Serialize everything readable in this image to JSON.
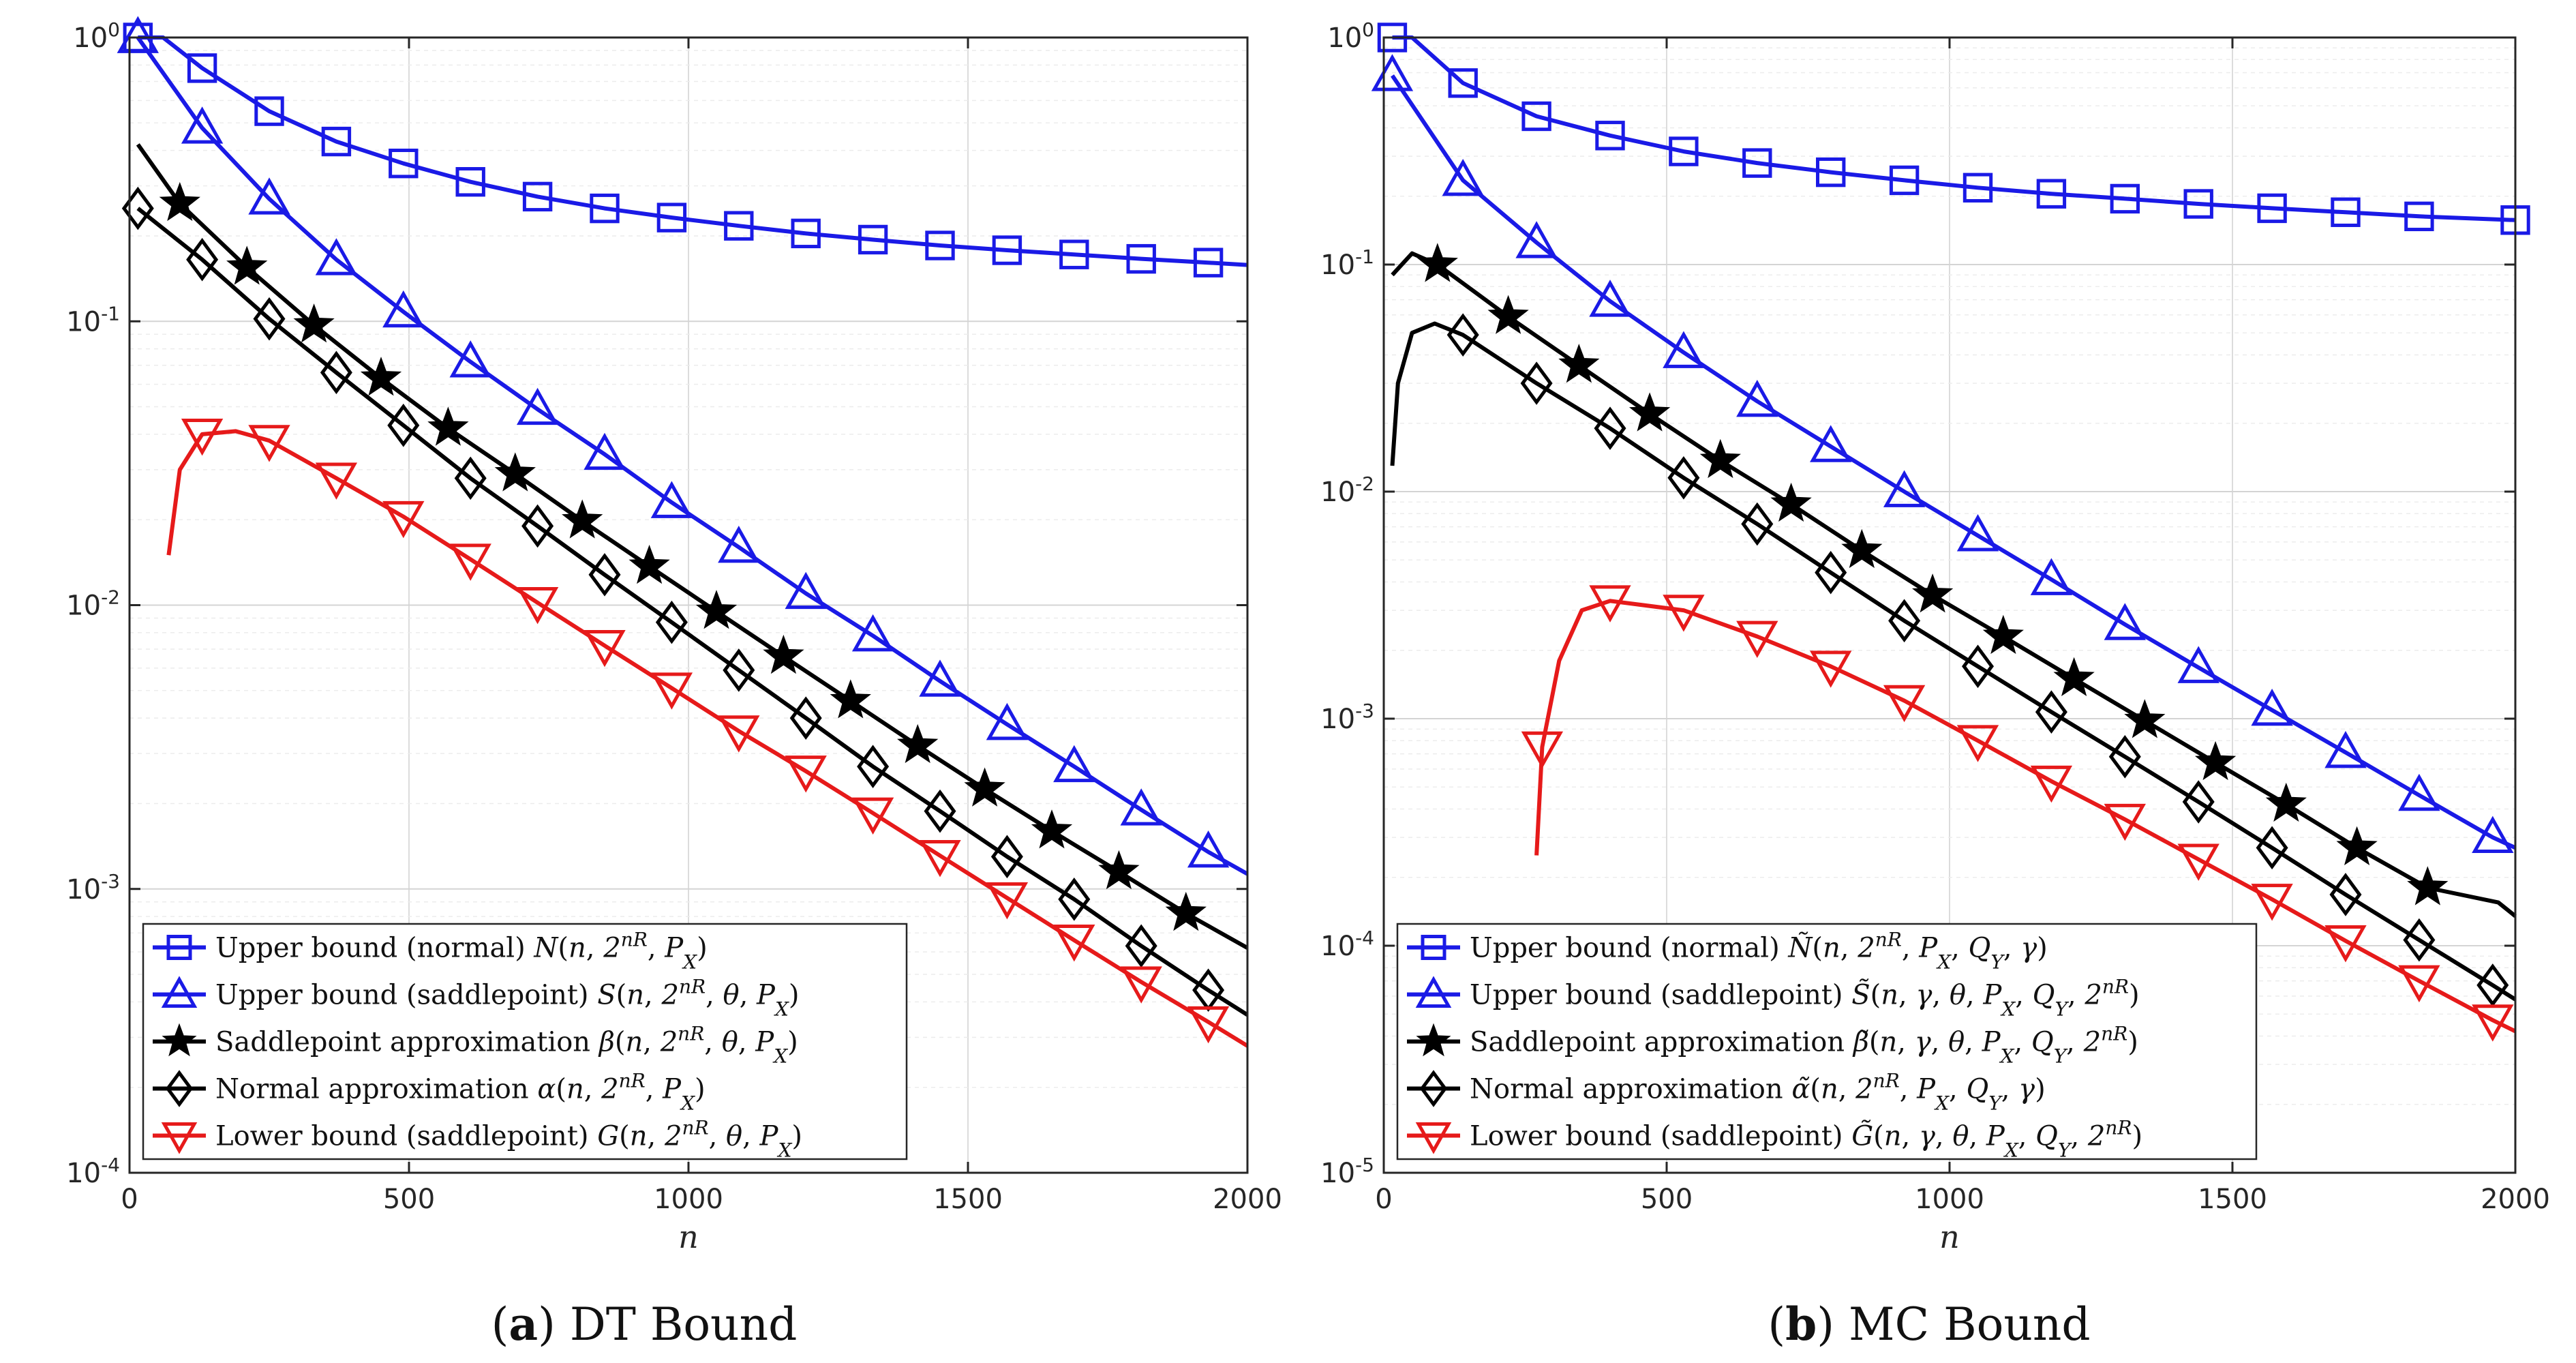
{
  "chart_data": [
    {
      "type": "line",
      "caption_letter": "a",
      "caption_title": "DT Bound",
      "xlabel": "n",
      "ylabel": "",
      "xlim": [
        0,
        2000
      ],
      "ylim": [
        0.0001,
        1
      ],
      "yscale": "log",
      "xticks": [
        0,
        500,
        1000,
        1500,
        2000
      ],
      "xtick_labels": [
        "0",
        "500",
        "1000",
        "1500",
        "2000"
      ],
      "ytick_values": [
        1,
        0.1,
        0.01,
        0.001,
        0.0001
      ],
      "ytick_bases": [
        "10",
        "10",
        "10",
        "10",
        "10"
      ],
      "ytick_exps": [
        "0",
        "-1",
        "-2",
        "-3",
        "-4"
      ],
      "grid": true,
      "legend_position": "bottom-left",
      "series": [
        {
          "name": "Upper bound (normal)",
          "math": "N(n, 2^{nR}, P_X)",
          "color": "#1a1ae6",
          "marker": "square",
          "x": [
            15,
            60,
            130,
            250,
            370,
            490,
            610,
            730,
            850,
            970,
            1090,
            1210,
            1330,
            1450,
            1570,
            1690,
            1810,
            1930,
            2000
          ],
          "y": [
            1.0,
            1.0,
            0.78,
            0.55,
            0.43,
            0.36,
            0.31,
            0.275,
            0.25,
            0.232,
            0.217,
            0.204,
            0.194,
            0.185,
            0.178,
            0.172,
            0.166,
            0.161,
            0.158
          ],
          "marker_idx": [
            0,
            2,
            3,
            4,
            5,
            6,
            7,
            8,
            9,
            10,
            11,
            12,
            13,
            14,
            15,
            16,
            17
          ]
        },
        {
          "name": "Upper bound (saddlepoint)",
          "math": "S(n, 2^{nR}, θ, P_X)",
          "color": "#1a1ae6",
          "marker": "triangle-up",
          "x": [
            15,
            130,
            250,
            370,
            490,
            610,
            730,
            850,
            970,
            1090,
            1210,
            1330,
            1450,
            1570,
            1690,
            1810,
            1930,
            2000
          ],
          "y": [
            1.0,
            0.48,
            0.27,
            0.165,
            0.108,
            0.072,
            0.049,
            0.034,
            0.023,
            0.016,
            0.011,
            0.0078,
            0.0054,
            0.0038,
            0.0027,
            0.0019,
            0.00135,
            0.00113
          ],
          "marker_idx": [
            0,
            1,
            2,
            3,
            4,
            5,
            6,
            7,
            8,
            9,
            10,
            11,
            12,
            13,
            14,
            15,
            16
          ]
        },
        {
          "name": "Saddlepoint approximation",
          "math": "β(n, 2^{nR}, θ, P_X)",
          "color": "#000000",
          "marker": "star",
          "x": [
            15,
            90,
            210,
            330,
            450,
            570,
            690,
            810,
            930,
            1050,
            1170,
            1290,
            1410,
            1530,
            1650,
            1770,
            1890,
            2000
          ],
          "y": [
            0.42,
            0.26,
            0.155,
            0.097,
            0.063,
            0.042,
            0.029,
            0.0198,
            0.0137,
            0.0095,
            0.0066,
            0.0046,
            0.0032,
            0.00225,
            0.0016,
            0.00115,
            0.00082,
            0.00062
          ],
          "marker_idx": [
            1,
            2,
            3,
            4,
            5,
            6,
            7,
            8,
            9,
            10,
            11,
            12,
            13,
            14,
            15,
            16
          ]
        },
        {
          "name": "Normal approximation",
          "math": "α(n, 2^{nR}, P_X)",
          "color": "#000000",
          "marker": "diamond",
          "x": [
            15,
            130,
            250,
            370,
            490,
            610,
            730,
            850,
            970,
            1090,
            1210,
            1330,
            1450,
            1570,
            1690,
            1810,
            1930,
            2000
          ],
          "y": [
            0.25,
            0.165,
            0.102,
            0.066,
            0.043,
            0.028,
            0.019,
            0.0128,
            0.0087,
            0.0059,
            0.004,
            0.0027,
            0.00188,
            0.0013,
            0.00092,
            0.00063,
            0.00044,
            0.00036
          ],
          "marker_idx": [
            0,
            1,
            2,
            3,
            4,
            5,
            6,
            7,
            8,
            9,
            10,
            11,
            12,
            13,
            14,
            15,
            16
          ]
        },
        {
          "name": "Lower bound (saddlepoint)",
          "math": "G(n, 2^{nR}, θ, P_X)",
          "color": "#e61a1a",
          "marker": "triangle-down",
          "x": [
            70,
            90,
            130,
            190,
            250,
            370,
            490,
            610,
            730,
            850,
            970,
            1090,
            1210,
            1330,
            1450,
            1570,
            1690,
            1810,
            1930,
            2000
          ],
          "y": [
            0.015,
            0.03,
            0.04,
            0.041,
            0.038,
            0.028,
            0.0205,
            0.0145,
            0.0102,
            0.0072,
            0.0051,
            0.0036,
            0.0026,
            0.00185,
            0.00131,
            0.00093,
            0.00066,
            0.00047,
            0.00034,
            0.00028
          ],
          "marker_idx": [
            2,
            4,
            5,
            6,
            7,
            8,
            9,
            10,
            11,
            12,
            13,
            14,
            15,
            16,
            17,
            18
          ]
        }
      ]
    },
    {
      "type": "line",
      "caption_letter": "b",
      "caption_title": "MC Bound",
      "xlabel": "n",
      "ylabel": "",
      "xlim": [
        0,
        2000
      ],
      "ylim": [
        1e-05,
        1
      ],
      "yscale": "log",
      "xticks": [
        0,
        500,
        1000,
        1500,
        2000
      ],
      "xtick_labels": [
        "0",
        "500",
        "1000",
        "1500",
        "2000"
      ],
      "ytick_values": [
        1,
        0.1,
        0.01,
        0.001,
        0.0001,
        1e-05
      ],
      "ytick_bases": [
        "10",
        "10",
        "10",
        "10",
        "10",
        "10"
      ],
      "ytick_exps": [
        "0",
        "-1",
        "-2",
        "-3",
        "-4",
        "-5"
      ],
      "grid": true,
      "legend_position": "bottom-left",
      "series": [
        {
          "name": "Upper bound (normal)",
          "math": "Ñ(n, 2^{nR}, P_X, Q_Y, γ)",
          "color": "#1a1ae6",
          "marker": "square",
          "x": [
            15,
            50,
            140,
            270,
            400,
            530,
            660,
            790,
            920,
            1050,
            1180,
            1310,
            1440,
            1570,
            1700,
            1830,
            2000
          ],
          "y": [
            1.0,
            1.0,
            0.63,
            0.45,
            0.37,
            0.315,
            0.28,
            0.255,
            0.235,
            0.218,
            0.205,
            0.195,
            0.185,
            0.177,
            0.17,
            0.163,
            0.157
          ],
          "marker_idx": [
            0,
            2,
            3,
            4,
            5,
            6,
            7,
            8,
            9,
            10,
            11,
            12,
            13,
            14,
            15,
            16
          ]
        },
        {
          "name": "Upper bound (saddlepoint)",
          "math": "S̃(n, γ, θ, P_X, Q_Y, 2^{nR})",
          "color": "#1a1ae6",
          "marker": "triangle-up",
          "x": [
            15,
            140,
            270,
            400,
            530,
            660,
            790,
            920,
            1050,
            1180,
            1310,
            1440,
            1570,
            1700,
            1830,
            1960,
            2000
          ],
          "y": [
            0.68,
            0.235,
            0.125,
            0.069,
            0.041,
            0.025,
            0.0158,
            0.01,
            0.0064,
            0.0041,
            0.0026,
            0.00168,
            0.00109,
            0.00071,
            0.00046,
            0.0003,
            0.00027
          ],
          "marker_idx": [
            0,
            1,
            2,
            3,
            4,
            5,
            6,
            7,
            8,
            9,
            10,
            11,
            12,
            13,
            14,
            15
          ]
        },
        {
          "name": "Saddlepoint approximation",
          "math": "β̃(n, γ, θ, P_X, Q_Y, 2^{nR})",
          "color": "#000000",
          "marker": "star",
          "x": [
            15,
            50,
            95,
            220,
            345,
            470,
            595,
            720,
            845,
            970,
            1095,
            1220,
            1345,
            1470,
            1595,
            1720,
            1845,
            1970,
            2000
          ],
          "y": [
            0.09,
            0.112,
            0.1,
            0.059,
            0.036,
            0.022,
            0.0137,
            0.0088,
            0.0055,
            0.0035,
            0.0023,
            0.0015,
            0.00098,
            0.00064,
            0.00042,
            0.00027,
            0.00018,
            0.000155,
            0.000135
          ],
          "marker_idx": [
            2,
            3,
            4,
            5,
            6,
            7,
            8,
            9,
            10,
            11,
            12,
            13,
            14,
            15,
            16
          ]
        },
        {
          "name": "Normal approximation",
          "math": "α̃(n, 2^{nR}, P_X, Q_Y, γ)",
          "color": "#000000",
          "marker": "diamond",
          "x": [
            15,
            25,
            50,
            90,
            140,
            270,
            400,
            530,
            660,
            790,
            920,
            1050,
            1180,
            1310,
            1440,
            1570,
            1700,
            1830,
            1960,
            2000
          ],
          "y": [
            0.013,
            0.03,
            0.05,
            0.055,
            0.049,
            0.03,
            0.019,
            0.0115,
            0.0072,
            0.0044,
            0.0027,
            0.0017,
            0.00107,
            0.00068,
            0.00043,
            0.00027,
            0.000168,
            0.000106,
            6.7e-05,
            5.8e-05
          ],
          "marker_idx": [
            4,
            5,
            6,
            7,
            8,
            9,
            10,
            11,
            12,
            13,
            14,
            15,
            16,
            17,
            18
          ]
        },
        {
          "name": "Lower bound (saddlepoint)",
          "math": "G̃(n, γ, θ, P_X, Q_Y, 2^{nR})",
          "color": "#e61a1a",
          "marker": "triangle-down",
          "x": [
            270,
            280,
            310,
            350,
            400,
            530,
            660,
            790,
            920,
            1050,
            1180,
            1310,
            1440,
            1570,
            1700,
            1830,
            1960,
            2000
          ],
          "y": [
            0.00025,
            0.00075,
            0.0018,
            0.003,
            0.0033,
            0.003,
            0.0023,
            0.0017,
            0.0012,
            0.0008,
            0.00053,
            0.00036,
            0.00024,
            0.00016,
            0.000105,
            7e-05,
            4.7e-05,
            4.2e-05
          ],
          "marker_idx": [
            1,
            4,
            5,
            6,
            7,
            8,
            9,
            10,
            11,
            12,
            13,
            14,
            15,
            16
          ]
        }
      ]
    }
  ]
}
